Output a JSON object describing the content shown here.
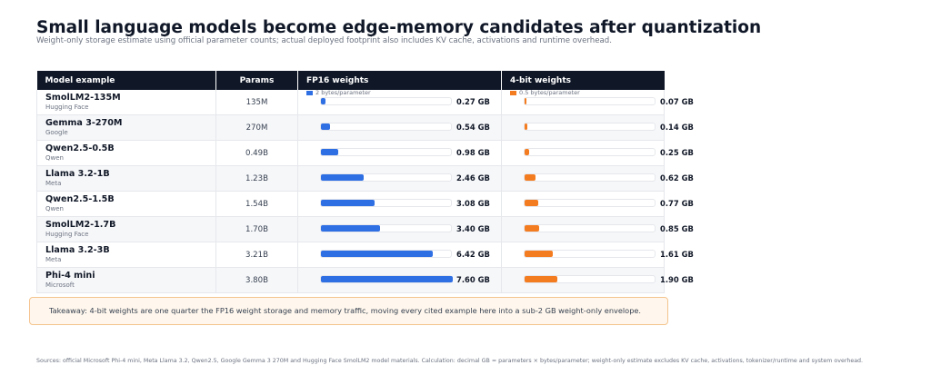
{
  "title": "Small language models become edge-memory candidates after quantization",
  "subtitle": "Weight-only storage estimate using official parameter counts; actual deployed footprint also includes KV cache, activations and runtime overhead.",
  "columns": {
    "model": "Model example",
    "params": "Params",
    "fp16": "FP16 weights",
    "q4": "4-bit weights"
  },
  "legend": {
    "fp16": "2 bytes/parameter",
    "q4": "0.5 bytes/parameter"
  },
  "colors": {
    "fp16": "#2f6fe4",
    "q4": "#f47c20",
    "header_bg": "#101828"
  },
  "takeaway": "Takeaway: 4-bit weights are one quarter the FP16 weight storage and memory traffic, moving every cited example here into a sub-2 GB weight-only envelope.",
  "sources": "Sources: official Microsoft Phi-4 mini, Meta Llama 3.2, Qwen2.5, Google Gemma 3 270M and Hugging Face SmolLM2 model materials. Calculation: decimal GB = parameters × bytes/parameter; weight-only estimate excludes KV cache, activations, tokenizer/runtime and system overhead.",
  "chart_data": {
    "type": "bar",
    "xlim": [
      0,
      7.6
    ],
    "rows": [
      {
        "model": "SmolLM2-135M",
        "org": "Hugging Face",
        "params": "135M",
        "fp16": 0.27,
        "fp16_label": "0.27 GB",
        "q4": 0.07,
        "q4_label": "0.07 GB"
      },
      {
        "model": "Gemma 3-270M",
        "org": "Google",
        "params": "270M",
        "fp16": 0.54,
        "fp16_label": "0.54 GB",
        "q4": 0.14,
        "q4_label": "0.14 GB"
      },
      {
        "model": "Qwen2.5-0.5B",
        "org": "Qwen",
        "params": "0.49B",
        "fp16": 0.98,
        "fp16_label": "0.98 GB",
        "q4": 0.25,
        "q4_label": "0.25 GB"
      },
      {
        "model": "Llama 3.2-1B",
        "org": "Meta",
        "params": "1.23B",
        "fp16": 2.46,
        "fp16_label": "2.46 GB",
        "q4": 0.62,
        "q4_label": "0.62 GB"
      },
      {
        "model": "Qwen2.5-1.5B",
        "org": "Qwen",
        "params": "1.54B",
        "fp16": 3.08,
        "fp16_label": "3.08 GB",
        "q4": 0.77,
        "q4_label": "0.77 GB"
      },
      {
        "model": "SmolLM2-1.7B",
        "org": "Hugging Face",
        "params": "1.70B",
        "fp16": 3.4,
        "fp16_label": "3.40 GB",
        "q4": 0.85,
        "q4_label": "0.85 GB"
      },
      {
        "model": "Llama 3.2-3B",
        "org": "Meta",
        "params": "3.21B",
        "fp16": 6.42,
        "fp16_label": "6.42 GB",
        "q4": 1.61,
        "q4_label": "1.61 GB"
      },
      {
        "model": "Phi-4 mini",
        "org": "Microsoft",
        "params": "3.80B",
        "fp16": 7.6,
        "fp16_label": "7.60 GB",
        "q4": 1.9,
        "q4_label": "1.90 GB"
      }
    ]
  }
}
